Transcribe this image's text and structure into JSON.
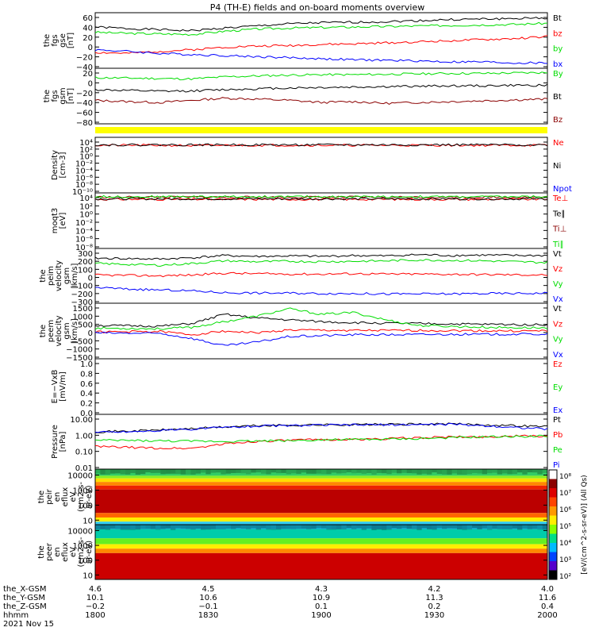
{
  "title": "P4 (TH-E) fields and on-board moments overview",
  "chart_data": [
    {
      "id": "fgs_gse",
      "type": "line",
      "ylabel": [
        "the",
        "fgs",
        "gse",
        "[nT]"
      ],
      "yticks": [
        "60",
        "40",
        "20",
        "0",
        "−20",
        "−40"
      ],
      "ylim": [
        -40,
        65
      ],
      "series": [
        {
          "name": "Bt",
          "color": "#000000",
          "values": [
            38,
            35,
            33,
            31,
            36,
            40,
            44,
            46,
            47,
            48,
            50,
            52,
            53,
            54,
            55
          ]
        },
        {
          "name": "bz",
          "color": "#ff0000",
          "values": [
            -10,
            -12,
            -8,
            -5,
            0,
            2,
            3,
            5,
            6,
            8,
            10,
            12,
            14,
            16,
            20
          ]
        },
        {
          "name": "by",
          "color": "#00dd00",
          "values": [
            28,
            26,
            25,
            24,
            30,
            34,
            36,
            37,
            38,
            39,
            40,
            41,
            42,
            43,
            45
          ]
        },
        {
          "name": "bx",
          "color": "#0000ff",
          "values": [
            -5,
            -8,
            -12,
            -14,
            -16,
            -18,
            -20,
            -22,
            -24,
            -25,
            -26,
            -28,
            -28,
            -30,
            -30
          ]
        }
      ]
    },
    {
      "id": "fgs_gsm",
      "type": "line",
      "ylabel": [
        "the",
        "fgs",
        "gsm",
        "[nT]"
      ],
      "yticks": [
        "20",
        "0",
        "−20",
        "−40",
        "−60",
        "−80"
      ],
      "ylim": [
        -90,
        40
      ],
      "series": [
        {
          "name": "By",
          "color": "#00dd00",
          "values": [
            18,
            17,
            16,
            15,
            20,
            22,
            24,
            25,
            25,
            26,
            27,
            28,
            28,
            29,
            30
          ]
        },
        {
          "name": "Bt",
          "color": "#000000",
          "values": [
            -10,
            -12,
            -14,
            -13,
            -10,
            -8,
            -6,
            -5,
            -4,
            -3,
            -2,
            -1,
            -1,
            0,
            0
          ]
        },
        {
          "name": "Bz",
          "color": "#8b0000",
          "values": [
            -35,
            -38,
            -40,
            -35,
            -30,
            -32,
            -35,
            -40,
            -38,
            -42,
            -40,
            -38,
            -36,
            -34,
            -32
          ]
        }
      ]
    },
    {
      "id": "density",
      "type": "line",
      "scale": "log",
      "ylabel": [
        "Density",
        "[cm-3]"
      ],
      "yticks": [
        "10⁴",
        "10²",
        "10⁰",
        "10⁻²",
        "10⁻⁴",
        "10⁻⁶",
        "10⁻⁸",
        "10⁻¹⁰"
      ],
      "ylim": [
        -10,
        4
      ],
      "series": [
        {
          "name": "Ne",
          "color": "#ff0000",
          "values": [
            2,
            2,
            2,
            1.9,
            2,
            2,
            2,
            2,
            2,
            2,
            2,
            2,
            2,
            2,
            2
          ]
        },
        {
          "name": "Ni",
          "color": "#000000",
          "values": [
            2.1,
            2.1,
            2.1,
            2.1,
            2.1,
            2.1,
            2.1,
            2.1,
            2.1,
            2.1,
            2.1,
            2.1,
            2.1,
            2.1,
            2.1
          ]
        },
        {
          "name": "Npot",
          "color": "#0000ff",
          "values": []
        }
      ]
    },
    {
      "id": "temperature",
      "type": "line",
      "scale": "log",
      "ylabel": [
        "moqt3",
        "[eV]"
      ],
      "yticks": [
        "10⁴",
        "10²",
        "10⁰",
        "10⁻²",
        "10⁻⁴",
        "10⁻⁶",
        "10⁻⁸"
      ],
      "ylim": [
        -9,
        4
      ],
      "series": [
        {
          "name": "Te⊥",
          "color": "#ff0000",
          "values": [
            2.5,
            2.5,
            2.5,
            2.5,
            2.5,
            2.5,
            2.5,
            2.5,
            2.5,
            2.5,
            2.5,
            2.5,
            2.5,
            2.5,
            2.5
          ]
        },
        {
          "name": "Te∥",
          "color": "#000000",
          "values": [
            2.6,
            2.6,
            2.6,
            2.6,
            2.6,
            2.6,
            2.6,
            2.6,
            2.6,
            2.6,
            2.6,
            2.6,
            2.6,
            2.6,
            2.6
          ]
        },
        {
          "name": "Ti⊥",
          "color": "#8b0000",
          "values": [
            3.0,
            3.0,
            3.0,
            3.0,
            3.0,
            3.0,
            3.0,
            3.0,
            3.0,
            3.0,
            3.0,
            3.0,
            3.0,
            3.0,
            3.0
          ]
        },
        {
          "name": "Ti∥",
          "color": "#00dd00",
          "values": [
            3.1,
            3.1,
            3.1,
            3.1,
            3.1,
            3.1,
            3.1,
            3.1,
            3.1,
            3.1,
            3.1,
            3.1,
            3.1,
            3.1,
            3.1
          ]
        }
      ]
    },
    {
      "id": "peim_velocity",
      "type": "line",
      "ylabel": [
        "the",
        "peim",
        "velocity",
        "gsm",
        "[km/s]"
      ],
      "yticks": [
        "300",
        "200",
        "100",
        "0",
        "−100",
        "−200",
        "−300"
      ],
      "ylim": [
        -300,
        320
      ],
      "series": [
        {
          "name": "Vt",
          "color": "#000000",
          "values": [
            210,
            205,
            200,
            215,
            240,
            230,
            235,
            230,
            240,
            235,
            250,
            240,
            245,
            240,
            240
          ]
        },
        {
          "name": "Vz",
          "color": "#ff0000",
          "values": [
            20,
            15,
            10,
            20,
            40,
            35,
            30,
            30,
            35,
            30,
            30,
            28,
            25,
            22,
            20
          ]
        },
        {
          "name": "Vy",
          "color": "#00dd00",
          "values": [
            150,
            140,
            130,
            150,
            180,
            170,
            175,
            170,
            175,
            180,
            190,
            185,
            180,
            170,
            160
          ]
        },
        {
          "name": "Vx",
          "color": "#0000ff",
          "values": [
            -120,
            -140,
            -150,
            -160,
            -180,
            -185,
            -185,
            -190,
            -190,
            -195,
            -195,
            -195,
            -190,
            -190,
            -185
          ]
        }
      ]
    },
    {
      "id": "peem_velocity",
      "type": "line",
      "ylabel": [
        "the",
        "peem",
        "velocity",
        "gsm",
        "[km/s]"
      ],
      "yticks": [
        "1500",
        "1000",
        "500",
        "0",
        "−500",
        "−1000",
        "−1500"
      ],
      "ylim": [
        -1500,
        1500
      ],
      "series": [
        {
          "name": "Vt",
          "color": "#000000",
          "values": [
            300,
            280,
            260,
            400,
            900,
            700,
            600,
            500,
            450,
            420,
            400,
            380,
            360,
            350,
            340
          ]
        },
        {
          "name": "Vz",
          "color": "#ff0000",
          "values": [
            -50,
            -40,
            -30,
            -200,
            0,
            -100,
            50,
            40,
            30,
            20,
            30,
            20,
            10,
            0,
            0
          ]
        },
        {
          "name": "Vy",
          "color": "#00dd00",
          "values": [
            150,
            140,
            120,
            200,
            500,
            800,
            1200,
            900,
            1000,
            600,
            300,
            250,
            200,
            180,
            170
          ]
        },
        {
          "name": "Vx",
          "color": "#0000ff",
          "values": [
            -100,
            -120,
            -130,
            -400,
            -800,
            -600,
            -300,
            -250,
            -200,
            -200,
            -190,
            -180,
            -180,
            -170,
            -170
          ]
        }
      ]
    },
    {
      "id": "efield",
      "type": "line",
      "ylabel": [
        "E=−VxB",
        "[mV/m]"
      ],
      "yticks": [
        "1.0",
        "0.8",
        "0.6",
        "0.4",
        "0.2",
        "0.0"
      ],
      "ylim": [
        0,
        1
      ],
      "series": [
        {
          "name": "Ez",
          "color": "#ff0000",
          "values": []
        },
        {
          "name": "Ey",
          "color": "#00dd00",
          "values": []
        },
        {
          "name": "Ex",
          "color": "#0000ff",
          "values": []
        }
      ]
    },
    {
      "id": "pressure",
      "type": "line",
      "scale": "log",
      "ylabel": [
        "Pressure",
        "[nPa]"
      ],
      "yticks": [
        "10.00",
        "1.00",
        "0.10",
        "0.01"
      ],
      "ylim": [
        -2,
        1.15
      ],
      "series": [
        {
          "name": "Pt",
          "color": "#000000",
          "values": [
            0.15,
            0.18,
            0.25,
            0.33,
            0.42,
            0.5,
            0.52,
            0.55,
            0.56,
            0.57,
            0.58,
            0.6,
            0.55,
            0.5,
            0.45
          ]
        },
        {
          "name": "Pb",
          "color": "#ff0000",
          "values": [
            -0.7,
            -0.75,
            -0.8,
            -0.8,
            -0.55,
            -0.4,
            -0.35,
            -0.3,
            -0.3,
            -0.25,
            -0.2,
            -0.15,
            -0.15,
            -0.1,
            -0.1
          ]
        },
        {
          "name": "Pe",
          "color": "#00dd00",
          "values": [
            -0.35,
            -0.35,
            -0.38,
            -0.4,
            -0.4,
            -0.38,
            -0.36,
            -0.32,
            -0.3,
            -0.28,
            -0.25,
            -0.2,
            -0.15,
            -0.12,
            -0.1
          ]
        },
        {
          "name": "Pi",
          "color": "#0000ff",
          "values": [
            0.12,
            0.15,
            0.22,
            0.3,
            0.4,
            0.48,
            0.5,
            0.53,
            0.54,
            0.55,
            0.56,
            0.58,
            0.5,
            0.4,
            0.3
          ]
        }
      ]
    },
    {
      "id": "peir_spectrogram",
      "type": "heatmap",
      "ylabel": [
        "the",
        "peir",
        "en",
        "eflux",
        "eV",
        "(cm2-s-",
        "sr-eV)"
      ],
      "yticks": [
        "10000",
        "1000",
        "100",
        "10"
      ],
      "ylim": [
        5,
        25000
      ]
    },
    {
      "id": "peer_spectrogram",
      "type": "heatmap",
      "ylabel": [
        "the",
        "peer",
        "en",
        "eflux",
        "eV",
        "(cm2-s-",
        "sr-eV)"
      ],
      "yticks": [
        "10000",
        "1000",
        "100",
        "10"
      ],
      "ylim": [
        5,
        25000
      ]
    }
  ],
  "colorbar": {
    "label": "[eV/(cm^2-s-sr-eV)] (All Qs)",
    "ticks": [
      "10⁸",
      "10⁷",
      "10⁶",
      "10⁵",
      "10⁴",
      "10³",
      "10²"
    ],
    "colors": [
      "#ffffff",
      "#8b0000",
      "#dd0000",
      "#ff4400",
      "#ff9900",
      "#ffee00",
      "#88ff00",
      "#00dd88",
      "#00bbff",
      "#0044ff",
      "#5500cc",
      "#000000"
    ]
  },
  "x_axis": {
    "rows": [
      {
        "label": "the_X-GSM",
        "values": [
          "4.6",
          "4.5",
          "4.3",
          "4.2",
          "4.0"
        ]
      },
      {
        "label": "the_Y-GSM",
        "values": [
          "10.1",
          "10.6",
          "10.9",
          "11.3",
          "11.6"
        ]
      },
      {
        "label": "the_Z-GSM",
        "values": [
          "−0.2",
          "−0.1",
          "0.1",
          "0.2",
          "0.4"
        ]
      },
      {
        "label": "hhmm",
        "values": [
          "1800",
          "1830",
          "1900",
          "1930",
          "2000"
        ]
      }
    ],
    "date": "2021 Nov 15"
  }
}
